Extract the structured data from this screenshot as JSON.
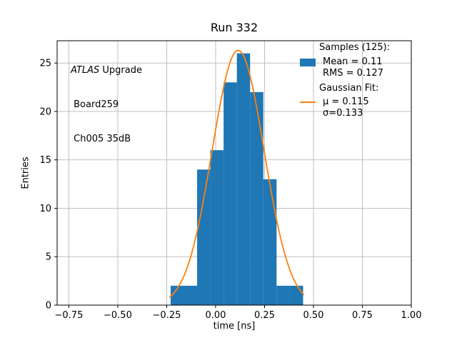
{
  "figure": {
    "title": "Run 332",
    "xlabel": "time [ns]",
    "ylabel": "Entries"
  },
  "annotation": {
    "line1_italic": "ATLAS",
    "line1_rest": " Upgrade",
    "line2": " Board259",
    "line3": " Ch005 35dB"
  },
  "legend": {
    "samples_header": "Samples (125):",
    "mean_label": "Mean = 0.11",
    "rms_label": "RMS = 0.127",
    "fit_header": "Gaussian Fit:",
    "mu_label": "μ = 0.115",
    "sigma_label": "σ=0.133"
  },
  "colors": {
    "hist": "#1f77b4",
    "fit": "#ff7f0e",
    "grid": "#b8b8b8",
    "axes": "#000000"
  },
  "chart_data": {
    "type": "bar",
    "subtype": "histogram-with-gaussian-fit",
    "title": "Run 332",
    "xlabel": "time [ns]",
    "ylabel": "Entries",
    "xlim": [
      -0.81,
      1.0
    ],
    "ylim": [
      0,
      27.3
    ],
    "grid": true,
    "legend_position": "upper right",
    "n_samples": 125,
    "mean": 0.11,
    "rms": 0.127,
    "xticks": {
      "values": [
        -0.75,
        -0.5,
        -0.25,
        0.0,
        0.25,
        0.5,
        0.75,
        1.0
      ],
      "labels": [
        "−0.75",
        "−0.50",
        "−0.25",
        "0.00",
        "0.25",
        "0.50",
        "0.75",
        "1.00"
      ]
    },
    "yticks": {
      "values": [
        0,
        5,
        10,
        15,
        20,
        25
      ],
      "labels": [
        "0",
        "5",
        "10",
        "15",
        "20",
        "25"
      ]
    },
    "histogram": {
      "color": "#1f77b4",
      "bin_edges": [
        -0.23,
        -0.1623,
        -0.0946,
        -0.0269,
        0.0408,
        0.1085,
        0.1762,
        0.2439,
        0.3116,
        0.3793,
        0.447
      ],
      "counts": [
        2,
        2,
        14,
        16,
        23,
        26,
        22,
        13,
        2,
        2
      ]
    },
    "gaussian_fit": {
      "color": "#ff7f0e",
      "mu": 0.115,
      "sigma": 0.133,
      "amplitude": 26.3,
      "x_range": [
        -0.235,
        0.45
      ]
    }
  }
}
